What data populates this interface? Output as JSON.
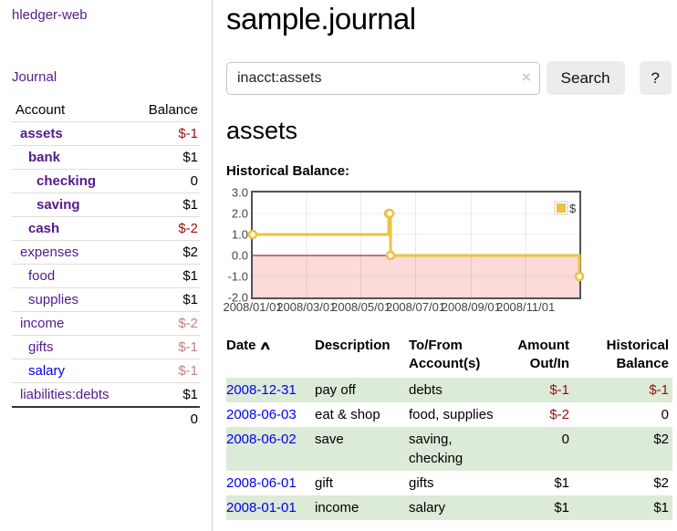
{
  "app": {
    "brand": "hledger-web"
  },
  "sidebar": {
    "nav": [
      {
        "label": "Journal"
      }
    ],
    "accounts_table": {
      "headers": {
        "account": "Account",
        "balance": "Balance"
      },
      "rows": [
        {
          "name": "assets",
          "balance": "$-1",
          "depth": 1,
          "bold": true,
          "balance_style": "neg"
        },
        {
          "name": "bank",
          "balance": "$1",
          "depth": 2,
          "bold": true,
          "balance_style": ""
        },
        {
          "name": "checking",
          "balance": "0",
          "depth": 3,
          "bold": true,
          "balance_style": ""
        },
        {
          "name": "saving",
          "balance": "$1",
          "depth": 3,
          "bold": true,
          "balance_style": ""
        },
        {
          "name": "cash",
          "balance": "$-2",
          "depth": 2,
          "bold": true,
          "balance_style": "neg"
        },
        {
          "name": "expenses",
          "balance": "$2",
          "depth": 1,
          "bold": false,
          "balance_style": ""
        },
        {
          "name": "food",
          "balance": "$1",
          "depth": 2,
          "bold": false,
          "balance_style": ""
        },
        {
          "name": "supplies",
          "balance": "$1",
          "depth": 2,
          "bold": false,
          "balance_style": ""
        },
        {
          "name": "income",
          "balance": "$-2",
          "depth": 1,
          "bold": false,
          "balance_style": "negdim"
        },
        {
          "name": "gifts",
          "balance": "$-1",
          "depth": 2,
          "bold": false,
          "balance_style": "negdim"
        },
        {
          "name": "salary",
          "balance": "$-1",
          "depth": 2,
          "bold": false,
          "balance_style": "negdim",
          "link_color": "blue"
        },
        {
          "name": "liabilities:debts",
          "balance": "$1",
          "depth": 1,
          "bold": false,
          "balance_style": ""
        }
      ],
      "total": "0"
    }
  },
  "main": {
    "title": "sample.journal",
    "search": {
      "value": "inacct:assets",
      "clear_icon": "×",
      "button_label": "Search",
      "help_label": "?"
    },
    "account_heading": "assets",
    "chart_label": "Historical Balance:"
  },
  "chart_data": {
    "type": "line",
    "step": true,
    "title": "Historical Balance:",
    "series": [
      {
        "name": "$",
        "color": "#edc240",
        "points": [
          {
            "date": "2008-01-01",
            "day": 0,
            "value": 1
          },
          {
            "date": "2008-06-01",
            "day": 152,
            "value": 2
          },
          {
            "date": "2008-06-02",
            "day": 153,
            "value": 2
          },
          {
            "date": "2008-06-03",
            "day": 154,
            "value": 0
          },
          {
            "date": "2008-12-31",
            "day": 365,
            "value": -1
          }
        ]
      }
    ],
    "x_ticks": [
      {
        "day": 0,
        "label": "2008/01/01"
      },
      {
        "day": 60,
        "label": "2008/03/01"
      },
      {
        "day": 121,
        "label": "2008/05/01"
      },
      {
        "day": 182,
        "label": "2008/07/01"
      },
      {
        "day": 244,
        "label": "2008/09/01"
      },
      {
        "day": 305,
        "label": "2008/11/01"
      }
    ],
    "y_ticks": [
      {
        "value": 3,
        "label": "3.0"
      },
      {
        "value": 2,
        "label": "2.0"
      },
      {
        "value": 1,
        "label": "1.0"
      },
      {
        "value": 0,
        "label": "0.0"
      },
      {
        "value": -1,
        "label": "-1.0"
      },
      {
        "value": -2,
        "label": "-2.0"
      }
    ],
    "ylim": [
      -2,
      3
    ],
    "x_span_days": 365,
    "legend": {
      "label": "$",
      "position": "top-right"
    },
    "grid": true,
    "negative_region_color": "#fbdada",
    "zero_line_color": "#8b0000",
    "frame_color": "#545454"
  },
  "register": {
    "headers": {
      "date": "Date",
      "sort_icon": "∧",
      "description": "Description",
      "tofrom": "To/From Account(s)",
      "amount": "Amount Out/In",
      "balance": "Historical Balance"
    },
    "rows": [
      {
        "date": "2008-12-31",
        "description": "pay off",
        "accounts": "debts",
        "amount": "$-1",
        "amount_negative": true,
        "balance": "$-1",
        "balance_negative": true
      },
      {
        "date": "2008-06-03",
        "description": "eat & shop",
        "accounts": "food, supplies",
        "amount": "$-2",
        "amount_negative": true,
        "balance": "0",
        "balance_negative": false
      },
      {
        "date": "2008-06-02",
        "description": "save",
        "accounts": "saving, checking",
        "amount": "0",
        "amount_negative": false,
        "balance": "$2",
        "balance_negative": false
      },
      {
        "date": "2008-06-01",
        "description": "gift",
        "accounts": "gifts",
        "amount": "$1",
        "amount_negative": false,
        "balance": "$2",
        "balance_negative": false
      },
      {
        "date": "2008-01-01",
        "description": "income",
        "accounts": "salary",
        "amount": "$1",
        "amount_negative": false,
        "balance": "$1",
        "balance_negative": false
      }
    ]
  }
}
